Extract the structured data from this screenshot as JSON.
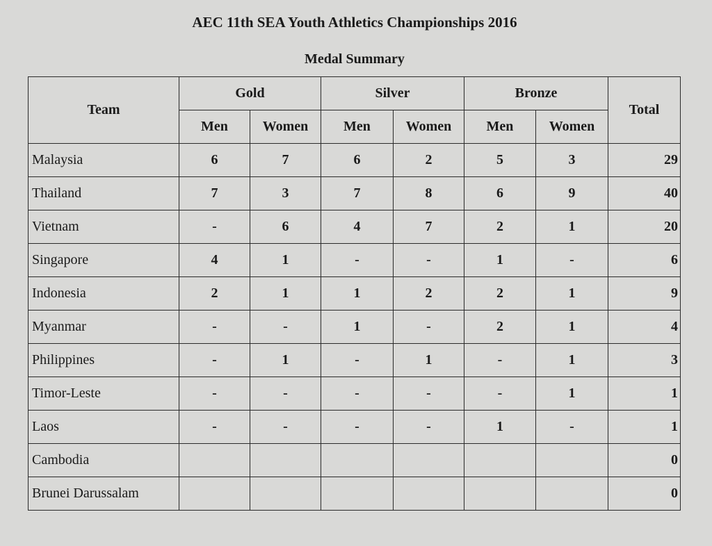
{
  "header": {
    "title": "AEC 11th SEA Youth Athletics Championships 2016",
    "subtitle": "Medal Summary"
  },
  "table": {
    "columns": {
      "team": "Team",
      "groups": [
        "Gold",
        "Silver",
        "Bronze"
      ],
      "sub": [
        "Men",
        "Women"
      ],
      "total": "Total"
    },
    "rows": [
      {
        "team": "Malaysia",
        "cells": [
          6,
          7,
          6,
          2,
          5,
          3
        ],
        "total": 29
      },
      {
        "team": "Thailand",
        "cells": [
          7,
          3,
          7,
          8,
          6,
          9
        ],
        "total": 40
      },
      {
        "team": "Vietnam",
        "cells": [
          "-",
          6,
          4,
          7,
          2,
          1
        ],
        "total": 20
      },
      {
        "team": "Singapore",
        "cells": [
          4,
          1,
          "-",
          "-",
          1,
          "-"
        ],
        "total": 6
      },
      {
        "team": "Indonesia",
        "cells": [
          2,
          1,
          1,
          2,
          2,
          1
        ],
        "total": 9
      },
      {
        "team": "Myanmar",
        "cells": [
          "-",
          "-",
          1,
          "-",
          2,
          1
        ],
        "total": 4
      },
      {
        "team": "Philippines",
        "cells": [
          "-",
          1,
          "-",
          1,
          "-",
          1
        ],
        "total": 3
      },
      {
        "team": "Timor-Leste",
        "cells": [
          "-",
          "-",
          "-",
          "-",
          "-",
          1
        ],
        "total": 1
      },
      {
        "team": "Laos",
        "cells": [
          "-",
          "-",
          "-",
          "-",
          1,
          "-"
        ],
        "total": 1
      },
      {
        "team": "Cambodia",
        "cells": [
          null,
          null,
          null,
          null,
          null,
          null
        ],
        "total": 0
      },
      {
        "team": "Brunei Darussalam",
        "cells": [
          null,
          null,
          null,
          null,
          null,
          null
        ],
        "total": 0
      }
    ]
  }
}
